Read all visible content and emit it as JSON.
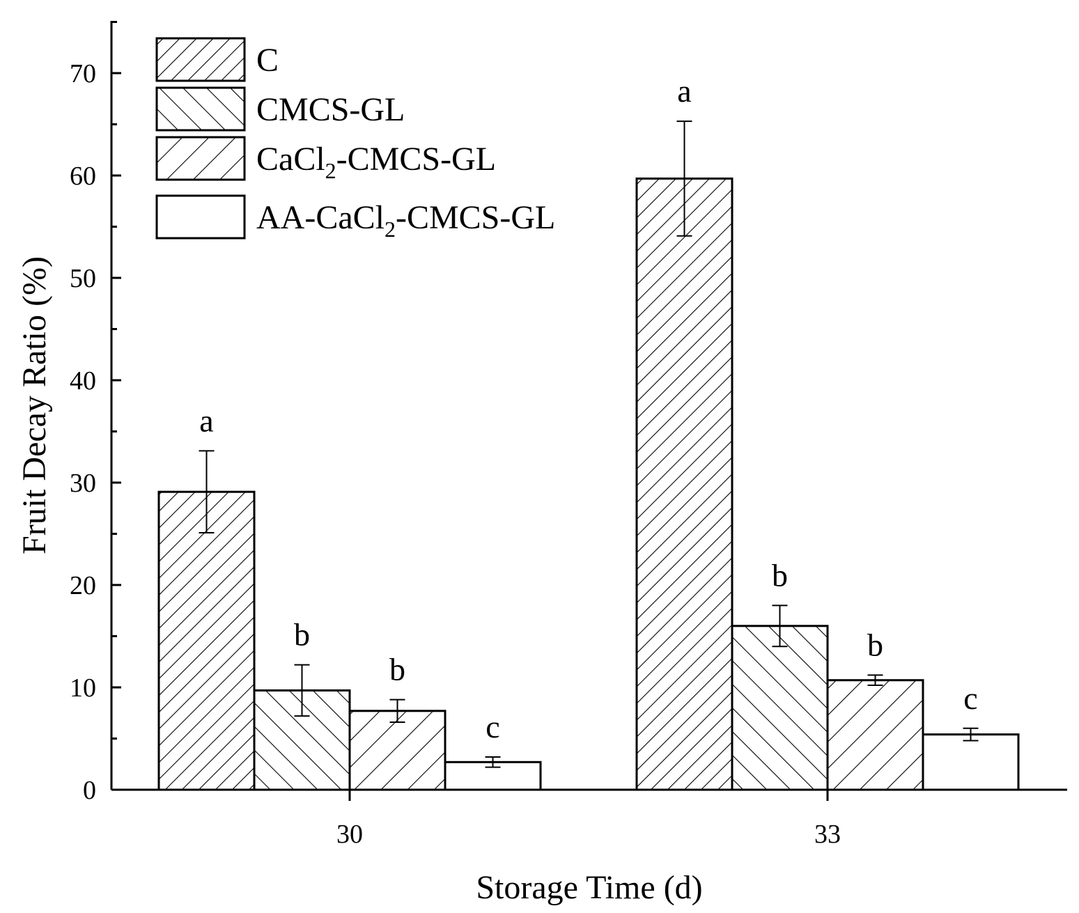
{
  "chart_data": {
    "type": "bar",
    "xlabel": "Storage Time (d)",
    "ylabel": "Fruit Decay Ratio (%)",
    "ylim": [
      0,
      75
    ],
    "yticks": [
      0,
      10,
      20,
      30,
      40,
      50,
      60,
      70
    ],
    "categories": [
      "30",
      "33"
    ],
    "legend_position": "top-left",
    "grid": false,
    "series": [
      {
        "name": "C",
        "name_base": "C",
        "name_sub": "",
        "name_tail": "",
        "pattern": "hatch-dense-forward",
        "values": [
          29.1,
          59.7
        ],
        "errors": [
          4.0,
          5.6
        ],
        "labels": [
          "a",
          "a"
        ]
      },
      {
        "name": "CMCS-GL",
        "name_base": "CMCS-GL",
        "name_sub": "",
        "name_tail": "",
        "pattern": "hatch-backward",
        "values": [
          9.7,
          16.0
        ],
        "errors": [
          2.5,
          2.0
        ],
        "labels": [
          "b",
          "b"
        ]
      },
      {
        "name": "CaCl2-CMCS-GL",
        "name_base": "CaCl",
        "name_sub": "2",
        "name_tail": "-CMCS-GL",
        "pattern": "hatch-forward",
        "values": [
          7.7,
          10.7
        ],
        "errors": [
          1.1,
          0.5
        ],
        "labels": [
          "b",
          "b"
        ]
      },
      {
        "name": "AA-CaCl2-CMCS-GL",
        "name_base": "AA-CaCl",
        "name_sub": "2",
        "name_tail": "-CMCS-GL",
        "pattern": "none",
        "values": [
          2.7,
          5.4
        ],
        "errors": [
          0.5,
          0.6
        ],
        "labels": [
          "c",
          "c"
        ]
      }
    ]
  }
}
